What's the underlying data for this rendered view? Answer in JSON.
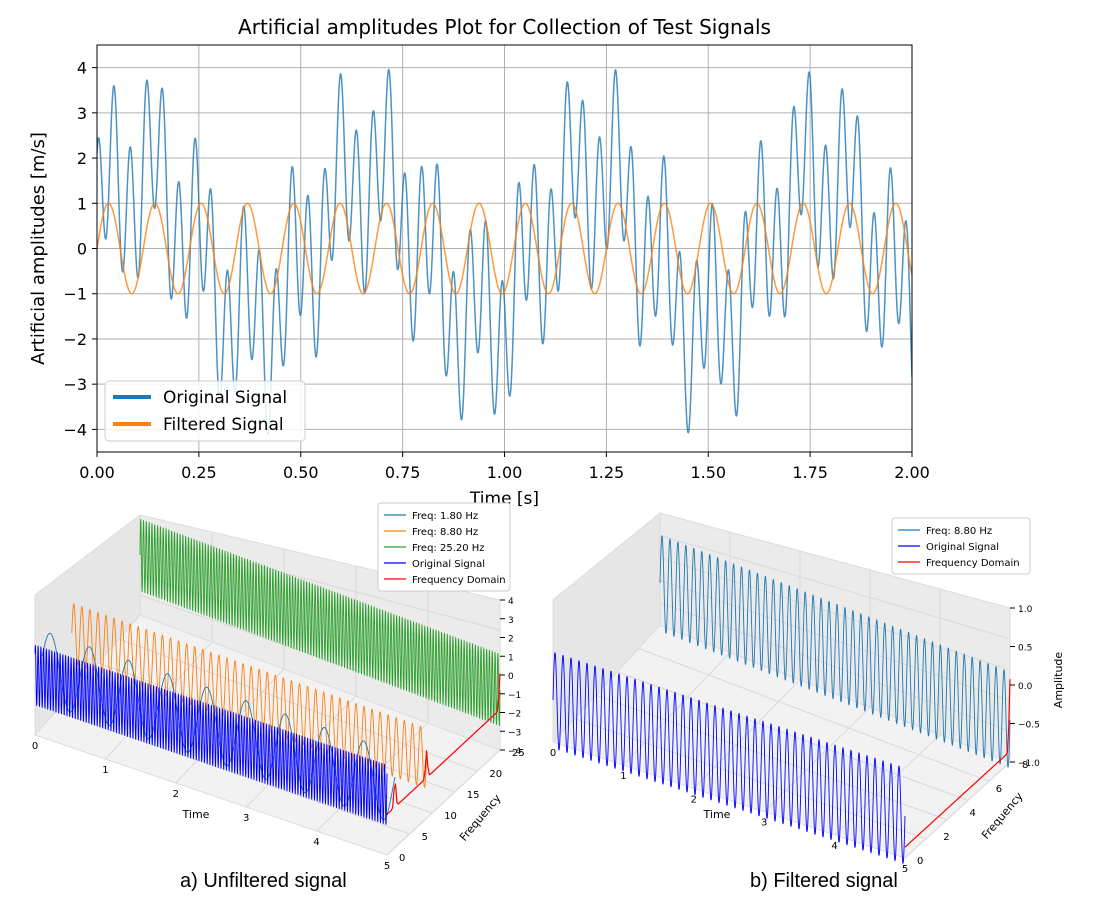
{
  "chart_data": [
    {
      "type": "line",
      "title": "Artificial amplitudes Plot for Collection of Test Signals",
      "xlabel": "Time [s]",
      "ylabel": "Artificial amplitudes [m/s]",
      "xlim": [
        0,
        2.0
      ],
      "ylim": [
        -4.5,
        4.5
      ],
      "xticks": [
        0.0,
        0.25,
        0.5,
        0.75,
        1.0,
        1.25,
        1.5,
        1.75,
        2.0
      ],
      "xtick_labels": [
        "0.00",
        "0.25",
        "0.50",
        "0.75",
        "1.00",
        "1.25",
        "1.50",
        "1.75",
        "2.00"
      ],
      "yticks": [
        -4,
        -3,
        -2,
        -1,
        0,
        1,
        2,
        3,
        4
      ],
      "ytick_labels": [
        "−4",
        "−3",
        "−2",
        "−1",
        "0",
        "1",
        "2",
        "3",
        "4"
      ],
      "grid": true,
      "legend_position": "lower-left",
      "series": [
        {
          "name": "Original Signal",
          "color": "#1f77b4",
          "components": [
            {
              "freq": 1.8,
              "amp": 1.65
            },
            {
              "freq": 8.8,
              "amp": 1.0
            },
            {
              "freq": 25.2,
              "amp": 1.65
            }
          ]
        },
        {
          "name": "Filtered Signal",
          "color": "#ff7f0e",
          "components": [
            {
              "freq": 8.8,
              "amp": 1.0
            }
          ]
        }
      ],
      "legend": [
        "Original Signal",
        "Filtered Signal"
      ]
    },
    {
      "type": "line",
      "subtitle": "a) Unfiltered signal",
      "xlabel": "Time",
      "ylabel": "Frequency",
      "zlabel": "",
      "time_ticks": [
        "0",
        "1",
        "2",
        "3",
        "4",
        "5"
      ],
      "freq_ticks": [
        "0",
        "5",
        "10",
        "15",
        "20",
        "25"
      ],
      "amp_ticks": [
        "4",
        "3",
        "2",
        "1",
        "0",
        "−1",
        "−2",
        "−3",
        "−4"
      ],
      "legend": [
        "Freq: 1.80 Hz",
        "Freq: 8.80 Hz",
        "Freq: 25.20 Hz",
        "Original Signal",
        "Frequency Domain"
      ],
      "series": [
        {
          "name": "Freq: 1.80 Hz",
          "freq": 1.8,
          "color": "#1f77b4"
        },
        {
          "name": "Freq: 8.80 Hz",
          "freq": 8.8,
          "color": "#ff7f0e"
        },
        {
          "name": "Freq: 25.20 Hz",
          "freq": 25.2,
          "color": "#2ca02c"
        },
        {
          "name": "Original Signal",
          "color": "#0000ff"
        },
        {
          "name": "Frequency Domain",
          "color": "#ff0000"
        }
      ]
    },
    {
      "type": "line",
      "subtitle": "b) Filtered signal",
      "xlabel": "Time",
      "ylabel": "Frequency",
      "zlabel": "Amplitude",
      "time_ticks": [
        "0",
        "1",
        "2",
        "3",
        "4",
        "5"
      ],
      "freq_ticks": [
        "0",
        "2",
        "4",
        "6",
        "8"
      ],
      "amp_ticks": [
        "1.0",
        "0.5",
        "0.0",
        "−0.5",
        "−1.0"
      ],
      "legend": [
        "Freq: 8.80 Hz",
        "Original Signal",
        "Frequency Domain"
      ],
      "series": [
        {
          "name": "Freq: 8.80 Hz",
          "freq": 8.8,
          "color": "#1f77b4"
        },
        {
          "name": "Original Signal",
          "color": "#0000ff"
        },
        {
          "name": "Frequency Domain",
          "color": "#ff0000"
        }
      ]
    }
  ],
  "captions": {
    "a": "a) Unfiltered signal",
    "b": "b) Filtered signal"
  }
}
